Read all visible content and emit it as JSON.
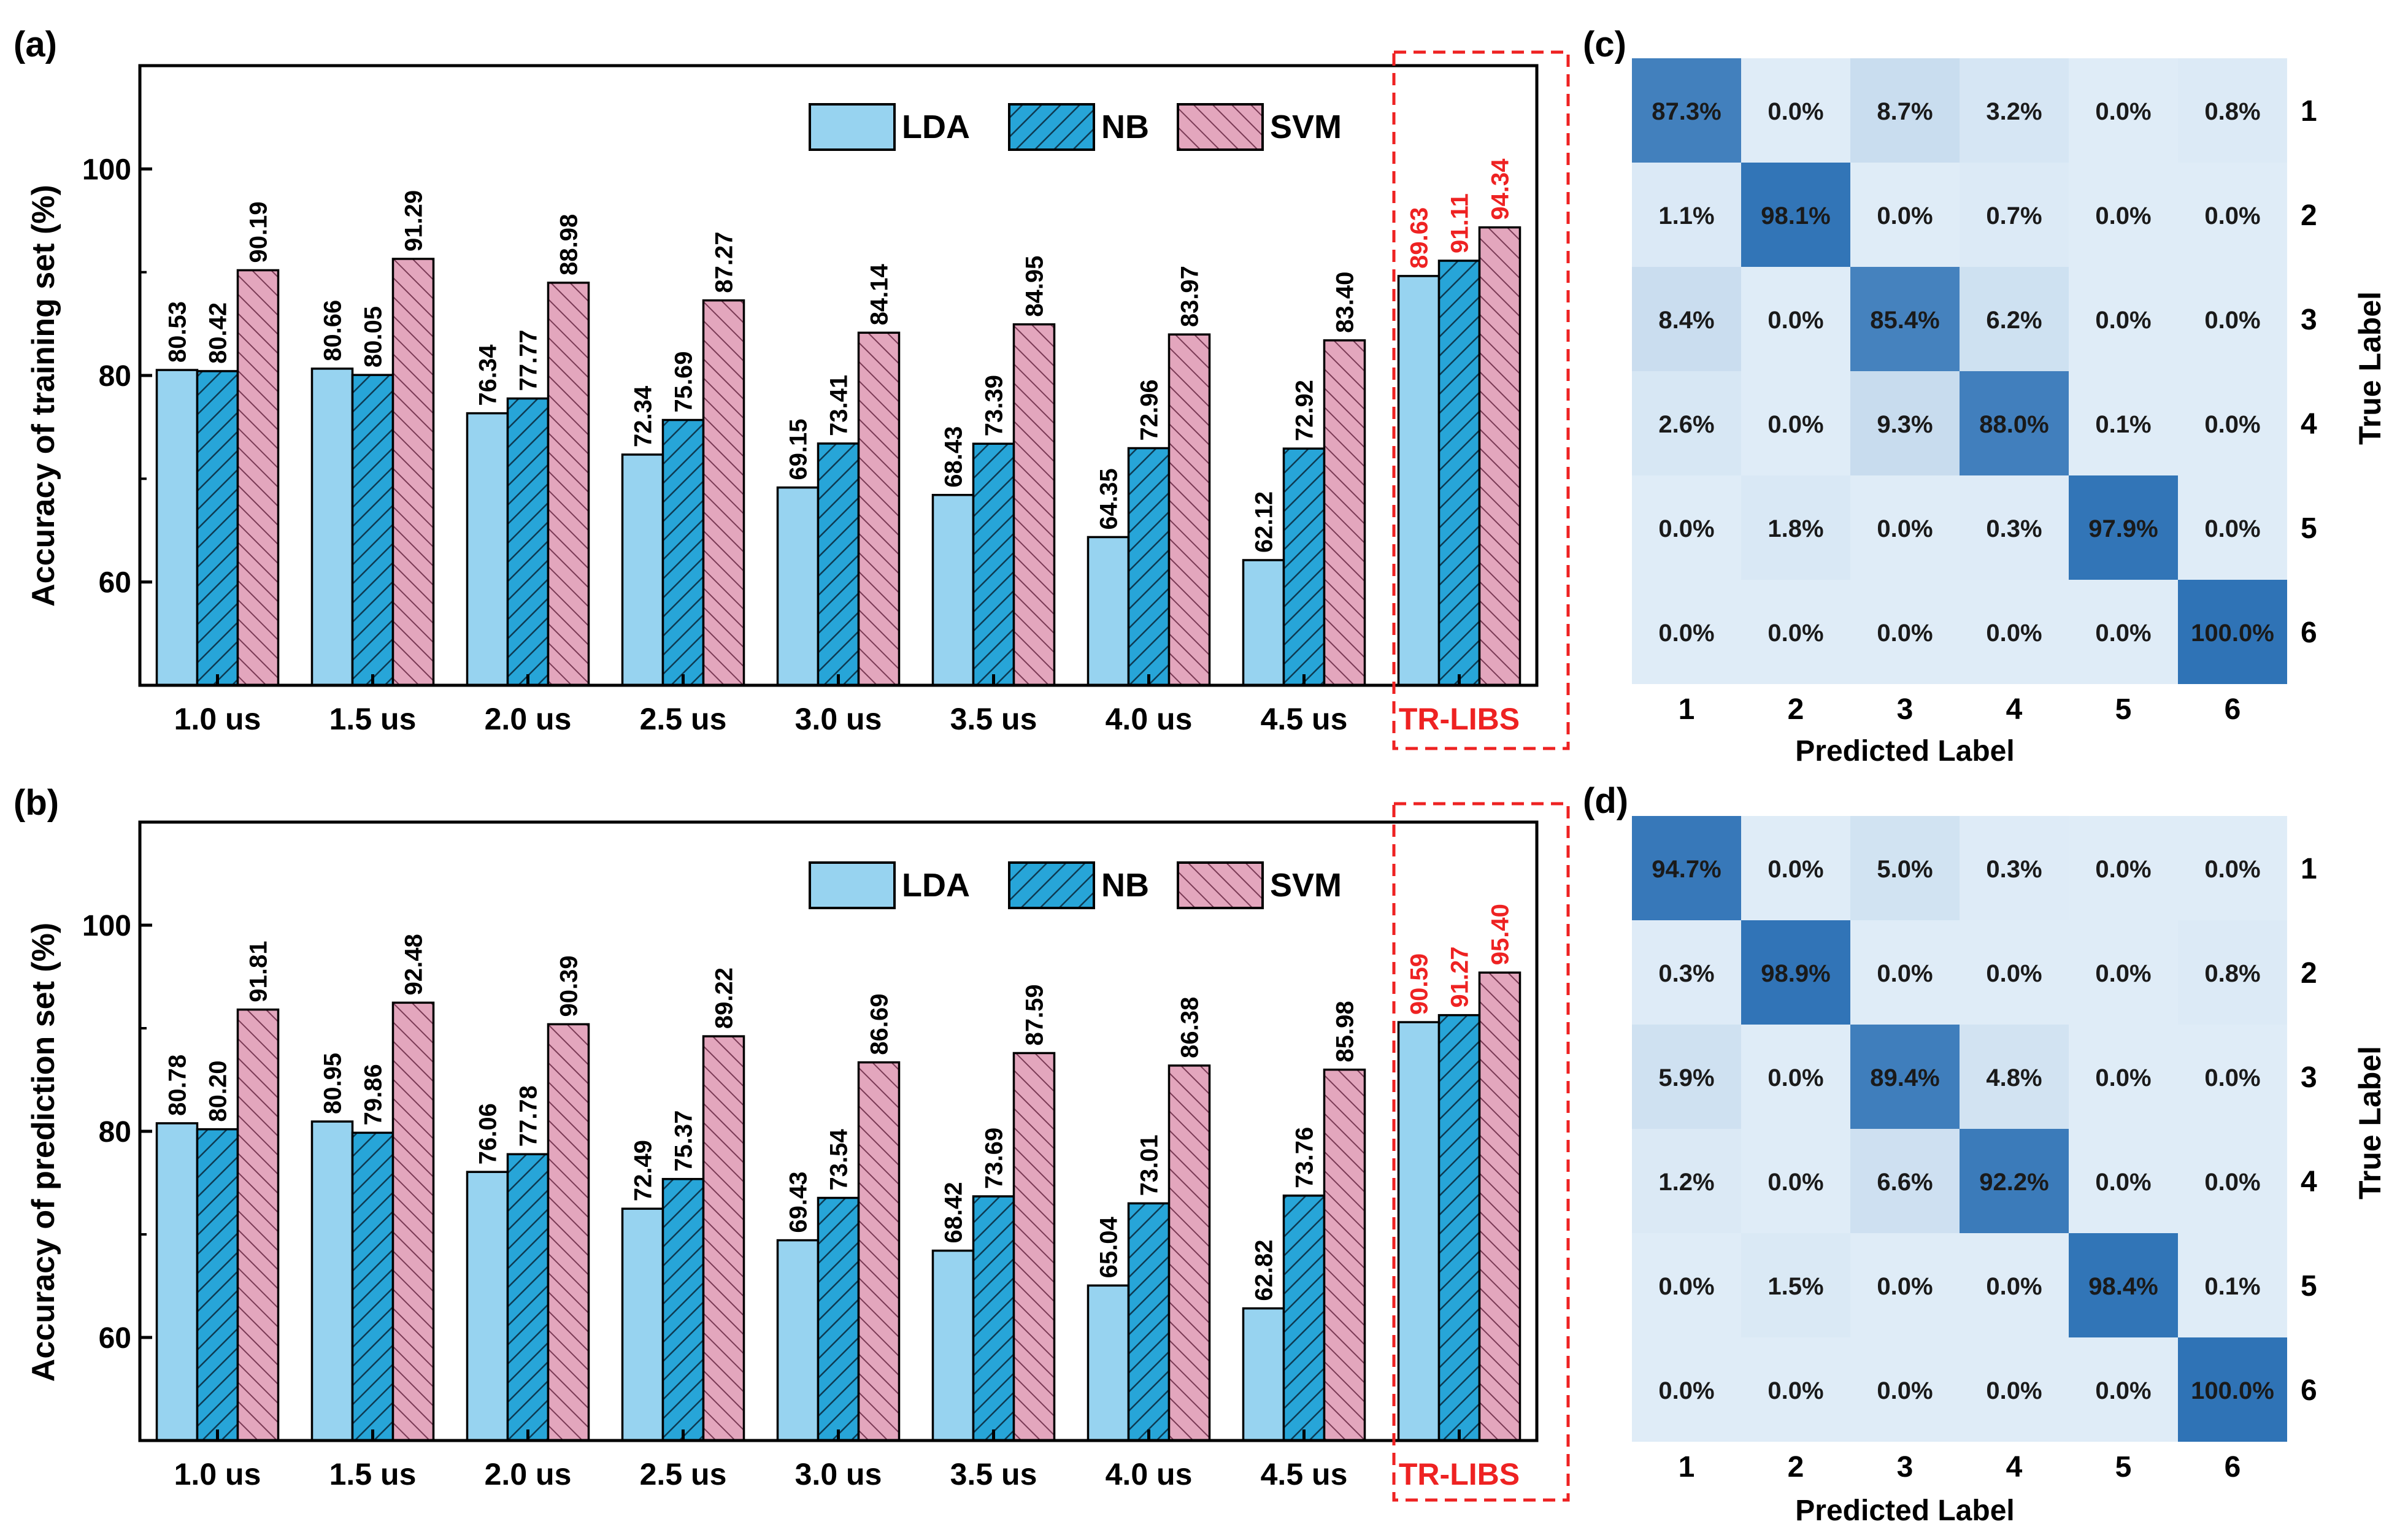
{
  "colors": {
    "lda": "#97d3f0",
    "nb": "#27a5d8",
    "svm": "#e3a6bd",
    "highlight": "#ee2222",
    "axis": "#000000",
    "cm_low": "#dfecf7",
    "cm_high": "#2f73b6"
  },
  "chart_data": [
    {
      "panel": "(a)",
      "type": "bar",
      "title": "",
      "xlabel": "",
      "ylabel": "Accuracy of training set (%)",
      "ylim": [
        50,
        110
      ],
      "yticks": [
        60,
        80,
        100
      ],
      "categories": [
        "1.0 us",
        "1.5 us",
        "2.0 us",
        "2.5 us",
        "3.0 us",
        "3.5 us",
        "4.0 us",
        "4.5 us",
        "TR-LIBS"
      ],
      "highlight_category": "TR-LIBS",
      "legend": [
        "LDA",
        "NB",
        "SVM"
      ],
      "legend_position": "top-right",
      "series": [
        {
          "name": "LDA",
          "values": [
            80.53,
            80.66,
            76.34,
            72.34,
            69.15,
            68.43,
            64.35,
            62.12,
            89.63
          ],
          "labels": [
            "80.53",
            "80.66",
            "76.34",
            "72.34",
            "69.15",
            "68.43",
            "64.35",
            "62.12",
            "89.63"
          ]
        },
        {
          "name": "NB",
          "values": [
            80.42,
            80.05,
            77.77,
            75.69,
            73.41,
            73.39,
            72.96,
            72.92,
            91.11
          ],
          "labels": [
            "80.42",
            "80.05",
            "77.77",
            "75.69",
            "73.41",
            "73.39",
            "72.96",
            "72.92",
            "91.11"
          ]
        },
        {
          "name": "SVM",
          "values": [
            90.19,
            91.29,
            88.98,
            87.27,
            84.14,
            84.95,
            83.97,
            83.4,
            94.34
          ],
          "labels": [
            "90.19",
            "91.29",
            "88.98",
            "87.27",
            "84.14",
            "84.95",
            "83.97",
            "83.40",
            "94.34"
          ]
        }
      ]
    },
    {
      "panel": "(b)",
      "type": "bar",
      "title": "",
      "xlabel": "",
      "ylabel": "Accuracy of prediction set (%)",
      "ylim": [
        50,
        110
      ],
      "yticks": [
        60,
        80,
        100
      ],
      "categories": [
        "1.0 us",
        "1.5 us",
        "2.0 us",
        "2.5 us",
        "3.0 us",
        "3.5 us",
        "4.0 us",
        "4.5 us",
        "TR-LIBS"
      ],
      "highlight_category": "TR-LIBS",
      "legend": [
        "LDA",
        "NB",
        "SVM"
      ],
      "legend_position": "top-right",
      "series": [
        {
          "name": "LDA",
          "values": [
            80.78,
            80.95,
            76.06,
            72.49,
            69.43,
            68.42,
            65.04,
            62.82,
            90.59
          ],
          "labels": [
            "80.78",
            "80.95",
            "76.06",
            "72.49",
            "69.43",
            "68.42",
            "65.04",
            "62.82",
            "90.59"
          ]
        },
        {
          "name": "NB",
          "values": [
            80.2,
            79.86,
            77.78,
            75.37,
            73.54,
            73.69,
            73.01,
            73.76,
            91.27
          ],
          "labels": [
            "80.20",
            "79.86",
            "77.78",
            "75.37",
            "73.54",
            "73.69",
            "73.01",
            "73.76",
            "91.27"
          ]
        },
        {
          "name": "SVM",
          "values": [
            91.81,
            92.48,
            90.39,
            89.22,
            86.69,
            87.59,
            86.38,
            85.98,
            95.4
          ],
          "labels": [
            "91.81",
            "92.48",
            "90.39",
            "89.22",
            "86.69",
            "87.59",
            "86.38",
            "85.98",
            "95.40"
          ]
        }
      ]
    },
    {
      "panel": "(c)",
      "type": "heatmap",
      "xlabel": "Predicted Label",
      "ylabel": "True Label",
      "x_labels": [
        "1",
        "2",
        "3",
        "4",
        "5",
        "6"
      ],
      "y_labels": [
        "1",
        "2",
        "3",
        "4",
        "5",
        "6"
      ],
      "values": [
        [
          87.3,
          0.0,
          8.7,
          3.2,
          0.0,
          0.8
        ],
        [
          1.1,
          98.1,
          0.0,
          0.7,
          0.0,
          0.0
        ],
        [
          8.4,
          0.0,
          85.4,
          6.2,
          0.0,
          0.0
        ],
        [
          2.6,
          0.0,
          9.3,
          88.0,
          0.1,
          0.0
        ],
        [
          0.0,
          1.8,
          0.0,
          0.3,
          97.9,
          0.0
        ],
        [
          0.0,
          0.0,
          0.0,
          0.0,
          0.0,
          100.0
        ]
      ],
      "cell_labels": [
        [
          "87.3%",
          "0.0%",
          "8.7%",
          "3.2%",
          "0.0%",
          "0.8%"
        ],
        [
          "1.1%",
          "98.1%",
          "0.0%",
          "0.7%",
          "0.0%",
          "0.0%"
        ],
        [
          "8.4%",
          "0.0%",
          "85.4%",
          "6.2%",
          "0.0%",
          "0.0%"
        ],
        [
          "2.6%",
          "0.0%",
          "9.3%",
          "88.0%",
          "0.1%",
          "0.0%"
        ],
        [
          "0.0%",
          "1.8%",
          "0.0%",
          "0.3%",
          "97.9%",
          "0.0%"
        ],
        [
          "0.0%",
          "0.0%",
          "0.0%",
          "0.0%",
          "0.0%",
          "100.0%"
        ]
      ]
    },
    {
      "panel": "(d)",
      "type": "heatmap",
      "xlabel": "Predicted Label",
      "ylabel": "True Label",
      "x_labels": [
        "1",
        "2",
        "3",
        "4",
        "5",
        "6"
      ],
      "y_labels": [
        "1",
        "2",
        "3",
        "4",
        "5",
        "6"
      ],
      "values": [
        [
          94.7,
          0.0,
          5.0,
          0.3,
          0.0,
          0.0
        ],
        [
          0.3,
          98.9,
          0.0,
          0.0,
          0.0,
          0.8
        ],
        [
          5.9,
          0.0,
          89.4,
          4.8,
          0.0,
          0.0
        ],
        [
          1.2,
          0.0,
          6.6,
          92.2,
          0.0,
          0.0
        ],
        [
          0.0,
          1.5,
          0.0,
          0.0,
          98.4,
          0.1
        ],
        [
          0.0,
          0.0,
          0.0,
          0.0,
          0.0,
          100.0
        ]
      ],
      "cell_labels": [
        [
          "94.7%",
          "0.0%",
          "5.0%",
          "0.3%",
          "0.0%",
          "0.0%"
        ],
        [
          "0.3%",
          "98.9%",
          "0.0%",
          "0.0%",
          "0.0%",
          "0.8%"
        ],
        [
          "5.9%",
          "0.0%",
          "89.4%",
          "4.8%",
          "0.0%",
          "0.0%"
        ],
        [
          "1.2%",
          "0.0%",
          "6.6%",
          "92.2%",
          "0.0%",
          "0.0%"
        ],
        [
          "0.0%",
          "1.5%",
          "0.0%",
          "0.0%",
          "98.4%",
          "0.1%"
        ],
        [
          "0.0%",
          "0.0%",
          "0.0%",
          "0.0%",
          "0.0%",
          "100.0%"
        ]
      ]
    }
  ]
}
